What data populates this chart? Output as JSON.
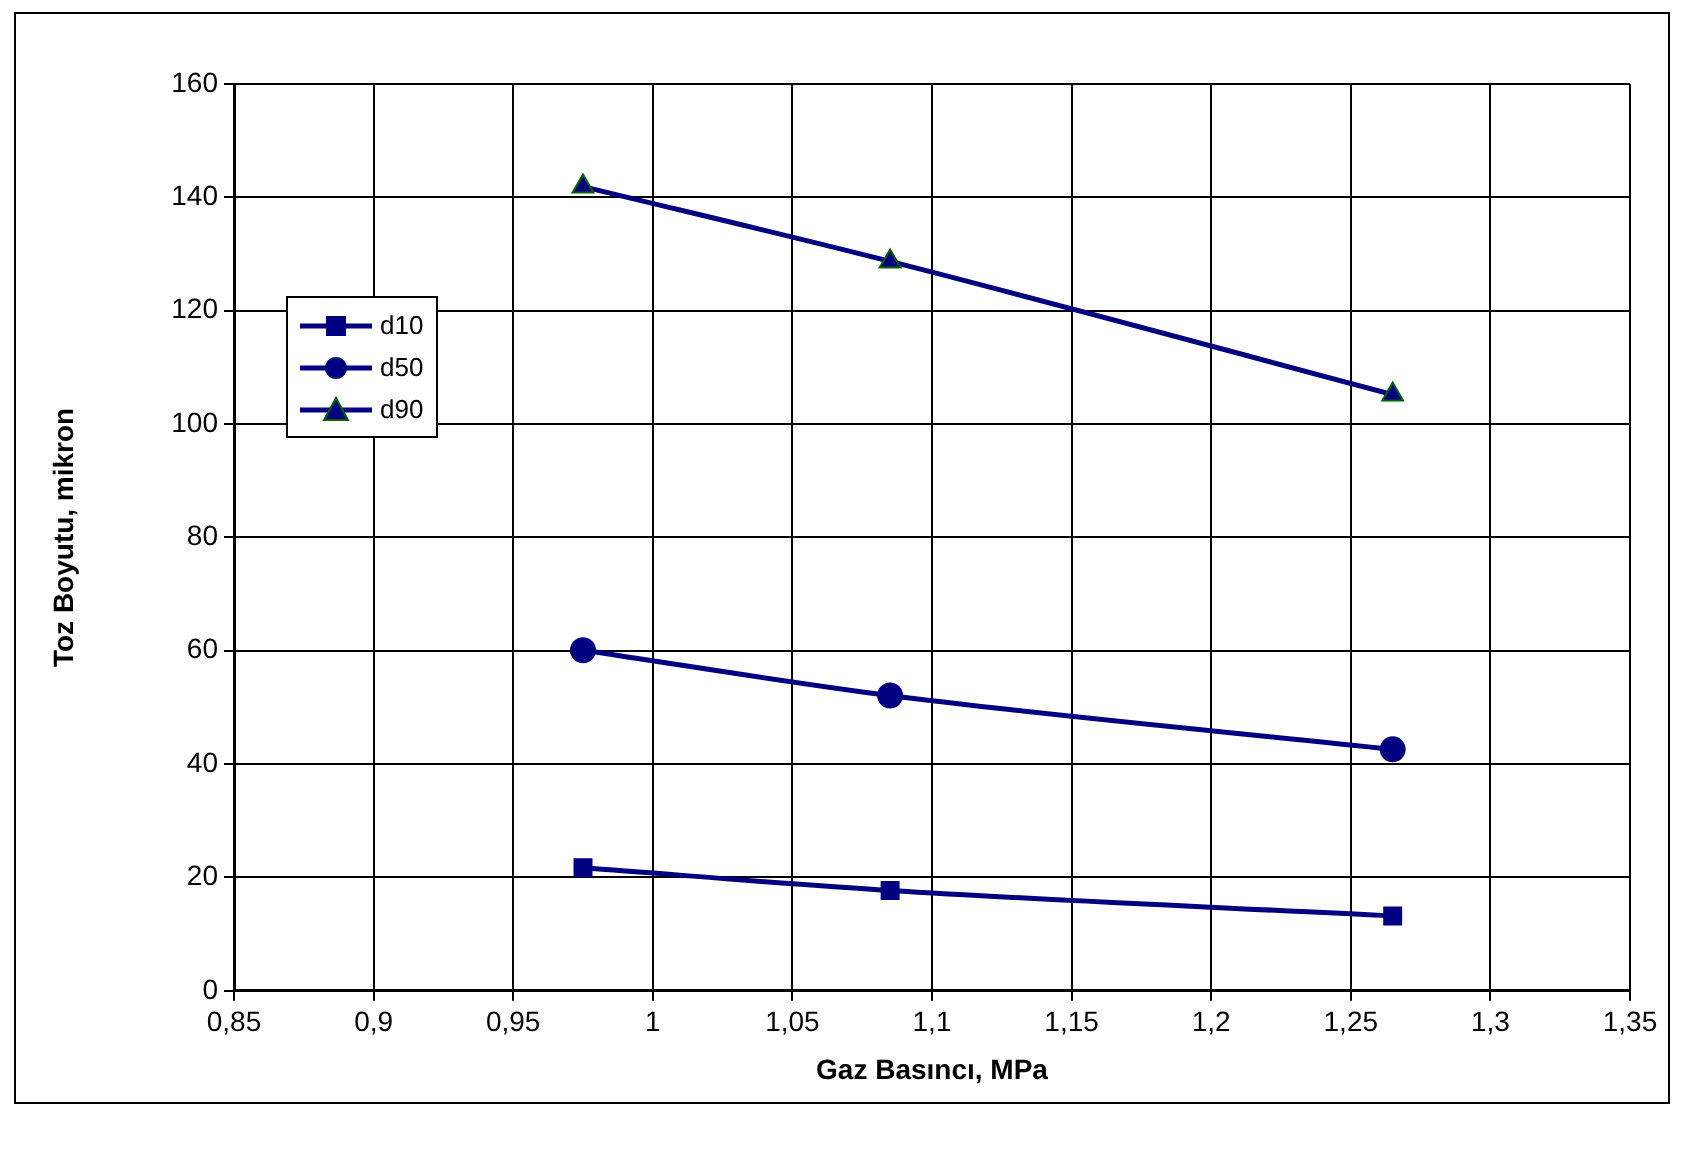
{
  "chart_data": {
    "type": "line",
    "xlabel": "Gaz Basıncı, MPa",
    "ylabel": "Toz Boyutu, mikron",
    "x": [
      0.975,
      1.085,
      1.265
    ],
    "series": [
      {
        "name": "d10",
        "color": "#000080",
        "marker": "square",
        "values": [
          21.7,
          17.7,
          13.2
        ]
      },
      {
        "name": "d50",
        "color": "#000080",
        "marker": "circle",
        "values": [
          60.1,
          52.1,
          42.6
        ]
      },
      {
        "name": "d90",
        "color": "#000080",
        "marker": "triangle",
        "values": [
          141.9,
          128.7,
          105.2
        ]
      }
    ],
    "xlim": [
      0.85,
      1.35
    ],
    "xticks": [
      {
        "value": 0.85,
        "label": "0,85"
      },
      {
        "value": 0.9,
        "label": "0,9"
      },
      {
        "value": 0.95,
        "label": "0,95"
      },
      {
        "value": 1,
        "label": "1"
      },
      {
        "value": 1.05,
        "label": "1,05"
      },
      {
        "value": 1.1,
        "label": "1,1"
      },
      {
        "value": 1.15,
        "label": "1,15"
      },
      {
        "value": 1.2,
        "label": "1,2"
      },
      {
        "value": 1.25,
        "label": "1,25"
      },
      {
        "value": 1.3,
        "label": "1,3"
      },
      {
        "value": 1.35,
        "label": "1,35"
      }
    ],
    "ylim": [
      0,
      160
    ],
    "yticks": [
      0,
      20,
      40,
      60,
      80,
      100,
      120,
      140,
      160
    ],
    "grid": true,
    "legend": "left",
    "line_style": "solid"
  }
}
